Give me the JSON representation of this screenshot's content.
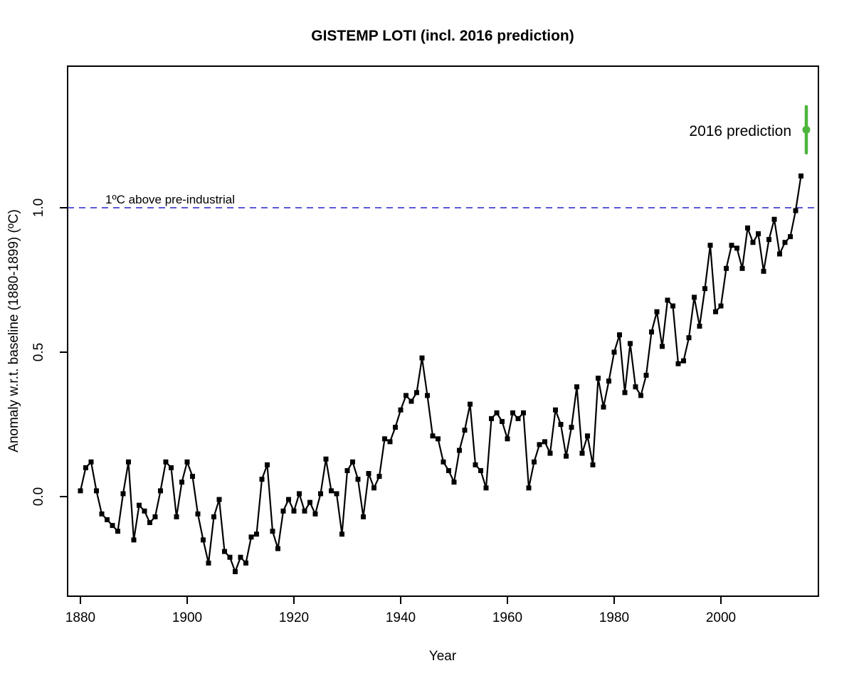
{
  "chart_data": {
    "type": "line",
    "title": "GISTEMP LOTI (incl. 2016 prediction)",
    "xlabel": "Year",
    "ylabel": "Anomaly w.r.t. baseline (1880-1899) (ºC)",
    "x_start": 1880,
    "x_end": 2015,
    "x_ticks": [
      1880,
      1900,
      1920,
      1940,
      1960,
      1980,
      2000
    ],
    "y_ticks": [
      0.0,
      0.5,
      1.0
    ],
    "y_tick_labels": [
      "0.0",
      "0.5",
      "1.0"
    ],
    "xlim": [
      1877.6,
      2018.3
    ],
    "ylim": [
      -0.35,
      1.49
    ],
    "grid": false,
    "legend": "none",
    "background_color": "#ffffff",
    "series": [
      {
        "name": "GISTEMP LOTI annual anomaly",
        "color": "#000000",
        "marker": "square",
        "values": [
          0.02,
          0.1,
          0.12,
          0.02,
          -0.06,
          -0.08,
          -0.1,
          -0.12,
          0.01,
          0.12,
          -0.15,
          -0.03,
          -0.05,
          -0.09,
          -0.07,
          0.02,
          0.12,
          0.1,
          -0.07,
          0.05,
          0.12,
          0.07,
          -0.06,
          -0.15,
          -0.23,
          -0.07,
          -0.01,
          -0.19,
          -0.21,
          -0.26,
          -0.21,
          -0.23,
          -0.14,
          -0.13,
          0.06,
          0.11,
          -0.12,
          -0.18,
          -0.05,
          -0.01,
          -0.05,
          0.01,
          -0.05,
          -0.02,
          -0.06,
          0.01,
          0.13,
          0.02,
          0.01,
          -0.13,
          0.09,
          0.12,
          0.06,
          -0.07,
          0.08,
          0.03,
          0.07,
          0.2,
          0.19,
          0.24,
          0.3,
          0.35,
          0.33,
          0.36,
          0.48,
          0.35,
          0.21,
          0.2,
          0.12,
          0.09,
          0.05,
          0.16,
          0.23,
          0.32,
          0.11,
          0.09,
          0.03,
          0.27,
          0.29,
          0.26,
          0.2,
          0.29,
          0.27,
          0.29,
          0.03,
          0.12,
          0.18,
          0.19,
          0.15,
          0.3,
          0.25,
          0.14,
          0.24,
          0.38,
          0.15,
          0.21,
          0.11,
          0.41,
          0.31,
          0.4,
          0.5,
          0.56,
          0.36,
          0.53,
          0.38,
          0.35,
          0.42,
          0.57,
          0.64,
          0.52,
          0.68,
          0.66,
          0.46,
          0.47,
          0.55,
          0.69,
          0.59,
          0.72,
          0.87,
          0.64,
          0.66,
          0.79,
          0.87,
          0.86,
          0.79,
          0.93,
          0.88,
          0.91,
          0.78,
          0.89,
          0.96,
          0.84,
          0.88,
          0.9,
          0.99,
          1.11
        ]
      }
    ],
    "reference_line": {
      "value": 1.0,
      "label": "1ºC above pre-industrial",
      "color": "#2222cc",
      "style": "dashed"
    },
    "prediction": {
      "label": "2016 prediction",
      "year": 2016,
      "value": 1.27,
      "ci_low": 1.19,
      "ci_high": 1.35,
      "color": "#4db53c"
    }
  }
}
